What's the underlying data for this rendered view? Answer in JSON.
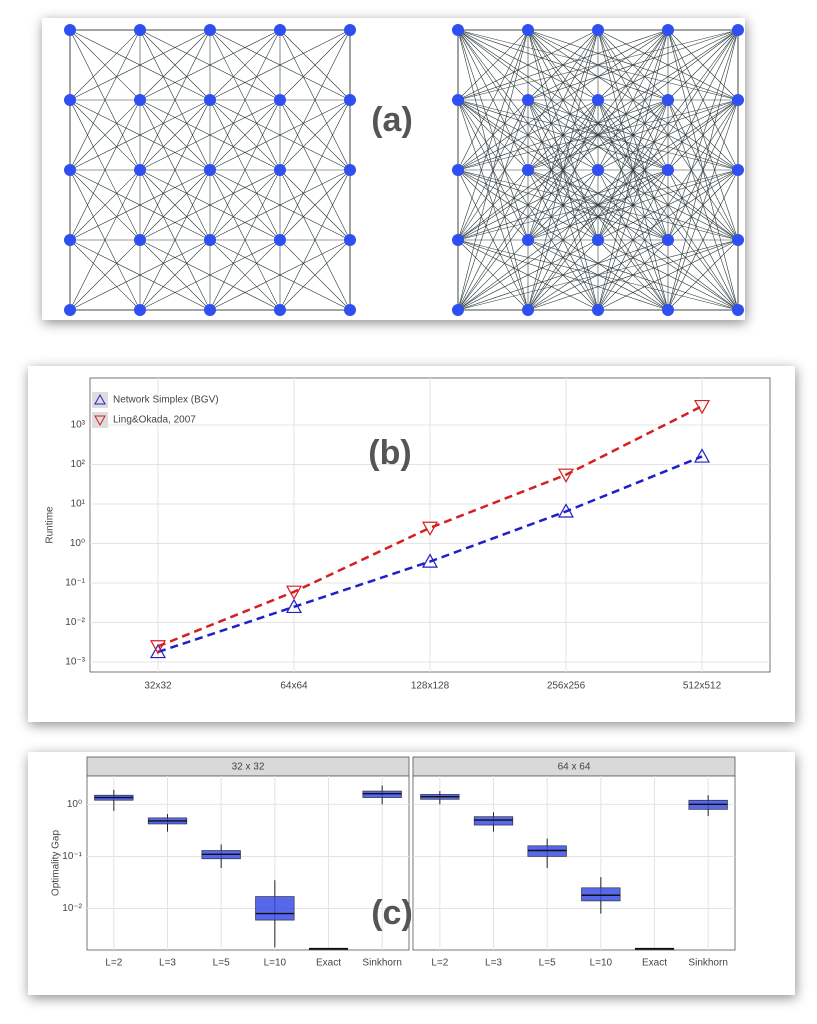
{
  "chart_data": [
    {
      "type": "network",
      "label": "(a)"
    },
    {
      "type": "line",
      "label": "(b)",
      "ylabel": "Runtime",
      "log_y": true,
      "grid": true,
      "legend": "top-left",
      "categories": [
        "32x32",
        "64x64",
        "128x128",
        "256x256",
        "512x512"
      ],
      "ylim": [
        0.00056,
        15500
      ],
      "yticks": [
        {
          "value": 0.001,
          "label": "10⁻³"
        },
        {
          "value": 0.01,
          "label": "10⁻²"
        },
        {
          "value": 0.1,
          "label": "10⁻¹"
        },
        {
          "value": 1,
          "label": "10⁰"
        },
        {
          "value": 10,
          "label": "10¹"
        },
        {
          "value": 100,
          "label": "10²"
        },
        {
          "value": 1000,
          "label": "10³"
        }
      ],
      "series": [
        {
          "name": "Network Simplex (BGV)",
          "color": "#2020c8",
          "marker": "triangle-up",
          "values": [
            0.0018,
            0.025,
            0.35,
            6.5,
            160
          ]
        },
        {
          "name": "Ling&Okada, 2007",
          "color": "#d42020",
          "marker": "triangle-down",
          "values": [
            0.0025,
            0.06,
            2.5,
            55,
            3000
          ]
        }
      ]
    },
    {
      "type": "box",
      "label": "(c)",
      "ylabel": "Optimality Gap",
      "log_y": true,
      "grid": true,
      "color": "#3a4ee8",
      "categories": [
        "L=2",
        "L=3",
        "L=5",
        "L=10",
        "Exact",
        "Sinkhorn"
      ],
      "ylim": [
        0.0016,
        3.5
      ],
      "yticks": [
        {
          "value": 0.01,
          "label": "10⁻²"
        },
        {
          "value": 0.1,
          "label": "10⁻¹"
        },
        {
          "value": 1,
          "label": "10⁰"
        }
      ],
      "facets": [
        {
          "title": "32 x 32",
          "boxes": [
            {
              "min": 0.75,
              "q1": 1.2,
              "median": 1.35,
              "q3": 1.5,
              "max": 1.9
            },
            {
              "min": 0.3,
              "q1": 0.42,
              "median": 0.48,
              "q3": 0.55,
              "max": 0.65
            },
            {
              "min": 0.06,
              "q1": 0.09,
              "median": 0.11,
              "q3": 0.13,
              "max": 0.17
            },
            {
              "min": 0.0018,
              "q1": 0.006,
              "median": 0.008,
              "q3": 0.017,
              "max": 0.035
            },
            {
              "min": 0.0017,
              "q1": 0.0017,
              "median": 0.0017,
              "q3": 0.0017,
              "max": 0.0017
            },
            {
              "min": 1.0,
              "q1": 1.35,
              "median": 1.6,
              "q3": 1.8,
              "max": 2.3
            }
          ]
        },
        {
          "title": "64 x 64",
          "boxes": [
            {
              "min": 1.0,
              "q1": 1.25,
              "median": 1.4,
              "q3": 1.55,
              "max": 1.8
            },
            {
              "min": 0.3,
              "q1": 0.4,
              "median": 0.5,
              "q3": 0.58,
              "max": 0.7
            },
            {
              "min": 0.06,
              "q1": 0.1,
              "median": 0.13,
              "q3": 0.16,
              "max": 0.22
            },
            {
              "min": 0.008,
              "q1": 0.014,
              "median": 0.018,
              "q3": 0.025,
              "max": 0.04
            },
            {
              "min": 0.0017,
              "q1": 0.0017,
              "median": 0.0017,
              "q3": 0.0017,
              "max": 0.0017
            },
            {
              "min": 0.6,
              "q1": 0.8,
              "median": 1.0,
              "q3": 1.2,
              "max": 1.5
            }
          ]
        }
      ]
    }
  ]
}
